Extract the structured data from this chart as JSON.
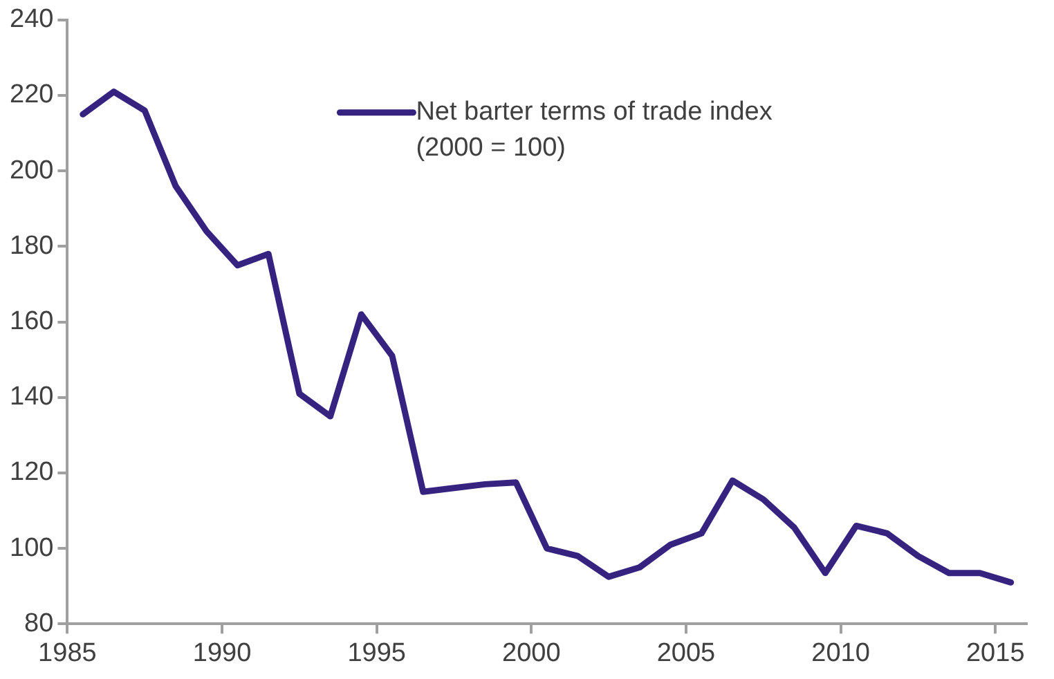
{
  "chart_data": {
    "type": "line",
    "x": [
      1985.5,
      1986.5,
      1987.5,
      1988.5,
      1989.5,
      1990.5,
      1991.5,
      1992.5,
      1993.5,
      1994.5,
      1995.5,
      1996.5,
      1997.5,
      1998.5,
      1999.5,
      2000.5,
      2001.5,
      2002.5,
      2003.5,
      2004.5,
      2005.5,
      2006.5,
      2007.5,
      2008.5,
      2009.5,
      2010.5,
      2011.5,
      2012.5,
      2013.5,
      2014.5,
      2015.5
    ],
    "series": [
      {
        "name": "Net barter terms of trade index (2000 = 100)",
        "color": "#35237f",
        "values": [
          215,
          221,
          216,
          196,
          184,
          175,
          178,
          141,
          135,
          162,
          151,
          115,
          116,
          117,
          117.5,
          100,
          98,
          92.5,
          95,
          101,
          104,
          118,
          113,
          105.5,
          93.5,
          106,
          104,
          98,
          93.5,
          93.5,
          91
        ]
      }
    ],
    "xlim": [
      1985,
      2016
    ],
    "xticks": [
      1985,
      1990,
      1995,
      2000,
      2005,
      2010,
      2015
    ],
    "ylim": [
      80,
      240
    ],
    "yticks": [
      80,
      100,
      120,
      140,
      160,
      180,
      200,
      220,
      240
    ],
    "grid": false,
    "legend": "top",
    "marker": "none",
    "line_style": "solid"
  }
}
